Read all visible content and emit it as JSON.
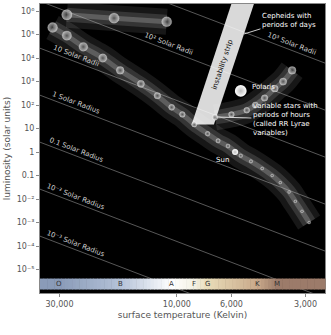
{
  "chart_data": {
    "type": "scatter",
    "log": true,
    "grid": false,
    "marker": "circle",
    "color": "#e8e8e8",
    "xlabel": "surface temperature (Kelvin)",
    "ylabel": "luminosity (solar units)",
    "xlim": [
      36000,
      2500
    ],
    "ylim": [
      1e-06,
      2000000
    ],
    "xticks": [
      {
        "value": 30000,
        "label": "30,000"
      },
      {
        "value": 10000,
        "label": "10,000"
      },
      {
        "value": 6000,
        "label": "6,000"
      },
      {
        "value": 3000,
        "label": "3,000"
      }
    ],
    "yticks": [
      {
        "value": 1000000,
        "label": "10⁶"
      },
      {
        "value": 100000,
        "label": "10⁵"
      },
      {
        "value": 10000,
        "label": "10⁴"
      },
      {
        "value": 1000,
        "label": "10³"
      },
      {
        "value": 100,
        "label": "10²"
      },
      10,
      1,
      0.1,
      {
        "value": 0.01,
        "label": "10⁻²"
      },
      {
        "value": 0.001,
        "label": "10⁻³"
      },
      {
        "value": 0.0001,
        "label": "10⁻⁴"
      },
      {
        "value": 1e-05,
        "label": "10⁻⁵"
      }
    ],
    "series": [
      {
        "x": [
          32000,
          28000,
          24000,
          20000,
          17000,
          14000,
          12000,
          10500,
          9500,
          8500,
          7500,
          6800,
          6200,
          5500,
          5000,
          4500,
          4100,
          3800,
          3500,
          3300,
          3100,
          2900
        ],
        "values": [
          200000,
          90000,
          30000,
          10000,
          3000,
          800,
          250,
          80,
          40,
          15,
          6,
          3,
          1.8,
          0.7,
          0.4,
          0.2,
          0.1,
          0.05,
          0.02,
          0.008,
          0.003,
          0.001
        ]
      },
      {
        "x": [
          7000,
          6000,
          5200,
          4800,
          4400,
          4000,
          3700,
          3400
        ],
        "values": [
          30,
          40,
          60,
          100,
          200,
          500,
          1000,
          3000
        ]
      },
      {
        "x": [
          28000,
          18000,
          11000
        ],
        "values": [
          700000,
          500000,
          350000
        ]
      }
    ],
    "highlighted": [
      {
        "label": "Sun",
        "x": 5800,
        "value": 1
      },
      {
        "label": "Polaris",
        "x": 5500,
        "value": 400
      }
    ],
    "radius_lines": [
      {
        "label": "10³ Solar Radii",
        "x": [
          40000,
          2500
        ],
        "values": [
          400000000,
          6100
        ]
      },
      {
        "label": "10² Solar Radii",
        "x": [
          40000,
          2500
        ],
        "values": [
          4000000,
          61
        ]
      },
      {
        "label": "10 Solar Radii",
        "x": [
          40000,
          2500
        ],
        "values": [
          40000,
          0.61
        ]
      },
      {
        "label": "1 Solar Radius",
        "x": [
          40000,
          2500
        ],
        "values": [
          400,
          0.0061
        ]
      },
      {
        "label": "0.1 Solar Radius",
        "x": [
          40000,
          2500
        ],
        "values": [
          4,
          6.1e-05
        ]
      },
      {
        "label": "10⁻² Solar Radius",
        "x": [
          40000,
          2500
        ],
        "values": [
          0.04,
          6.1e-07
        ]
      },
      {
        "label": "10⁻³ Solar Radius",
        "x": [
          40000,
          2500
        ],
        "values": [
          0.0004,
          6.1e-09
        ]
      }
    ],
    "instability_strip": {
      "label": "instability strip",
      "x": [
        5930,
        4800,
        7070,
        8710
      ],
      "values": [
        3000000,
        3000000,
        15,
        15
      ]
    },
    "annotations": [
      {
        "text": "Cepheids with periods of days"
      },
      {
        "text": "variable stars with periods of hours (called RR Lyrae variables)"
      }
    ],
    "spectral_classes": {
      "categories": [
        "O",
        "B",
        "A",
        "F",
        "G",
        "K",
        "M"
      ],
      "x": [
        30000,
        17000,
        10500,
        8500,
        7500,
        4700,
        3900
      ],
      "colors": [
        "#8a9bb8",
        "#b4c2d8",
        "#ffffff",
        "#f4f1e4",
        "#e8dcb8",
        "#c9a98a",
        "#9c7b6a"
      ]
    }
  }
}
